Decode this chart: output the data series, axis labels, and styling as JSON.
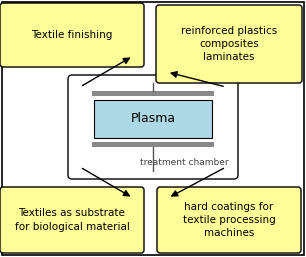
{
  "fig_width": 3.06,
  "fig_height": 2.57,
  "dpi": 100,
  "bg_color": "#ffffff",
  "border_color": "#000000",
  "yellow_box_color": "#ffff99",
  "yellow_box_edge": "#000000",
  "chamber_box_color": "#ffffff",
  "chamber_box_edge": "#000000",
  "plasma_box_color": "#add8e6",
  "plasma_box_edge": "#000000",
  "electrode_color": "#888888",
  "title_plasma": "Plasma",
  "label_chamber": "treatment chamber",
  "label_tl": "Textile finishing",
  "label_tr": "reinforced plastics\ncomposites\nlaminates",
  "label_bl": "Textiles as substrate\nfor biological material",
  "label_br": "hard coatings for\ntextile processing\nmachines",
  "arrow_color": "#000000",
  "text_fontsize": 7.5,
  "plasma_fontsize": 9,
  "chamber_fontsize": 6.5
}
